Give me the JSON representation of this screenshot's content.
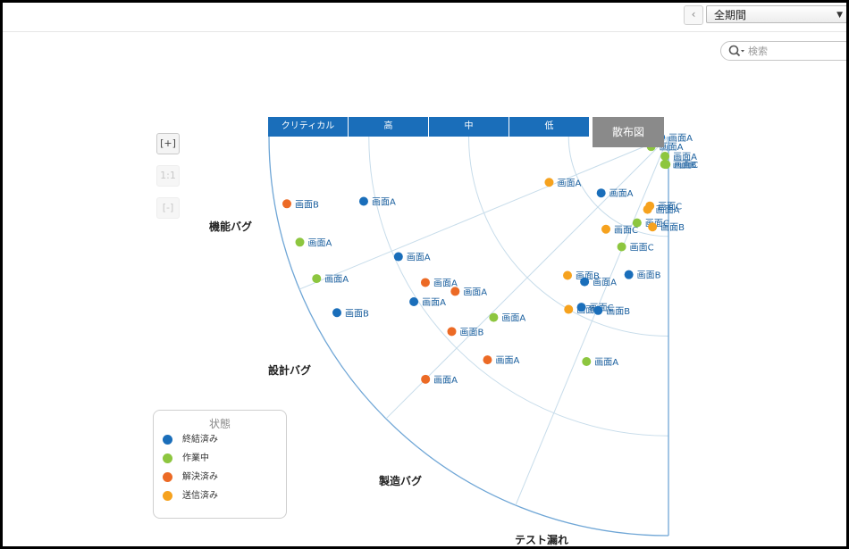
{
  "toolbar": {
    "back_icon": "chevron-left-icon",
    "period_value": "全期間",
    "search_placeholder": "検索"
  },
  "zoom": {
    "zoom_in_label": "[+]",
    "reset_label": "1:1",
    "zoom_out_label": "[-]"
  },
  "chart_data": {
    "type": "scatter",
    "severity_columns": [
      "クリティカル",
      "高",
      "中",
      "低"
    ],
    "view_button": "散布図",
    "categories": [
      "機能バグ",
      "設計バグ",
      "製造バグ",
      "テスト漏れ"
    ],
    "legend": {
      "title": "状態",
      "items": [
        {
          "label": "終結済み",
          "color": "#1a6eba"
        },
        {
          "label": "作業中",
          "color": "#8dc63f"
        },
        {
          "label": "解決済み",
          "color": "#ec6a25"
        },
        {
          "label": "送信済み",
          "color": "#f6a21e"
        }
      ]
    },
    "points": [
      {
        "label": "画面B",
        "status": "解決済み",
        "severity": "クリティカル",
        "category": "機能バグ",
        "r": 0.97,
        "a": 10
      },
      {
        "label": "画面A",
        "status": "作業中",
        "severity": "クリティカル",
        "category": "機能バグ",
        "r": 0.96,
        "a": 16
      },
      {
        "label": "画面A",
        "status": "作業中",
        "severity": "クリティカル",
        "category": "機能バグ",
        "r": 0.95,
        "a": 22
      },
      {
        "label": "画面B",
        "status": "終結済み",
        "severity": "クリティカル",
        "category": "機能バグ",
        "r": 0.94,
        "a": 28
      },
      {
        "label": "画面A",
        "status": "解決済み",
        "severity": "クリティカル",
        "category": "設計バグ",
        "r": 0.86,
        "a": 45
      },
      {
        "label": "画面A",
        "status": "終結済み",
        "severity": "高",
        "category": "機能バグ",
        "r": 0.78,
        "a": 12
      },
      {
        "label": "画面A",
        "status": "終結済み",
        "severity": "高",
        "category": "機能バグ",
        "r": 0.74,
        "a": 24
      },
      {
        "label": "画面A",
        "status": "解決済み",
        "severity": "高",
        "category": "機能バグ",
        "r": 0.71,
        "a": 31
      },
      {
        "label": "画面A",
        "status": "終結済み",
        "severity": "高",
        "category": "機能バグ",
        "r": 0.76,
        "a": 33
      },
      {
        "label": "画面A",
        "status": "解決済み",
        "severity": "高",
        "category": "機能バグ",
        "r": 0.66,
        "a": 36
      },
      {
        "label": "画面B",
        "status": "解決済み",
        "severity": "高",
        "category": "設計バグ",
        "r": 0.73,
        "a": 42
      },
      {
        "label": "画面A",
        "status": "作業中",
        "severity": "高",
        "category": "設計バグ",
        "r": 0.63,
        "a": 46
      },
      {
        "label": "画面A",
        "status": "解決済み",
        "severity": "高",
        "category": "設計バグ",
        "r": 0.72,
        "a": 51
      },
      {
        "label": "画面A",
        "status": "送信済み",
        "severity": "低",
        "category": "機能バグ",
        "r": 0.32,
        "a": 21
      },
      {
        "label": "画面A",
        "status": "終結済み",
        "severity": "低",
        "category": "機能バグ",
        "r": 0.22,
        "a": 40
      },
      {
        "label": "画面C",
        "status": "送信済み",
        "severity": "低",
        "category": "機能バグ",
        "r": 0.28,
        "a": 56
      },
      {
        "label": "画面B",
        "status": "送信済み",
        "severity": "中",
        "category": "機能バグ",
        "r": 0.43,
        "a": 54
      },
      {
        "label": "画面A",
        "status": "終結済み",
        "severity": "中",
        "category": "設計バグ",
        "r": 0.42,
        "a": 60
      },
      {
        "label": "画面A",
        "status": "送信済み",
        "severity": "中",
        "category": "設計バグ",
        "r": 0.5,
        "a": 60
      },
      {
        "label": "画面C",
        "status": "終結済み",
        "severity": "中",
        "category": "設計バグ",
        "r": 0.48,
        "a": 63
      },
      {
        "label": "画面B",
        "status": "終結済み",
        "severity": "中",
        "category": "製造バグ",
        "r": 0.47,
        "a": 68
      },
      {
        "label": "画面A",
        "status": "作業中",
        "severity": "中",
        "category": "製造バグ",
        "r": 0.6,
        "a": 70
      },
      {
        "label": "画面A",
        "status": "作業中",
        "severity": "低",
        "category": "機能バグ",
        "r": 0.05,
        "a": 30
      },
      {
        "label": "画面A",
        "status": "終結済み",
        "severity": "低",
        "category": "機能バグ",
        "r": 0.02,
        "a": 5
      },
      {
        "label": "画面A",
        "status": "作業中",
        "severity": "低",
        "category": "機能バグ",
        "r": 0.05,
        "a": 80
      },
      {
        "label": "画面C",
        "status": "送信済み",
        "severity": "低",
        "category": "機能バグ",
        "r": 0.18,
        "a": 75
      },
      {
        "label": "画面B",
        "status": "作業中",
        "severity": "低",
        "category": "機能バグ",
        "r": 0.07,
        "a": 82
      },
      {
        "label": "画面C",
        "status": "作業中",
        "severity": "低",
        "category": "設計バグ",
        "r": 0.23,
        "a": 70
      },
      {
        "label": "画面C",
        "status": "作業中",
        "severity": "低",
        "category": "設計バグ",
        "r": 0.3,
        "a": 67
      },
      {
        "label": "画面A",
        "status": "送信済み",
        "severity": "低",
        "category": "設計バグ",
        "r": 0.19,
        "a": 74
      },
      {
        "label": "画面B",
        "status": "終結済み",
        "severity": "中",
        "category": "製造バグ",
        "r": 0.36,
        "a": 74
      },
      {
        "label": "画面B",
        "status": "送信済み",
        "severity": "低",
        "category": "製造バグ",
        "r": 0.23,
        "a": 80
      },
      {
        "label": "画面C",
        "status": "作業中",
        "severity": "低",
        "category": "テスト漏れ",
        "r": 0.07,
        "a": 85
      }
    ]
  }
}
